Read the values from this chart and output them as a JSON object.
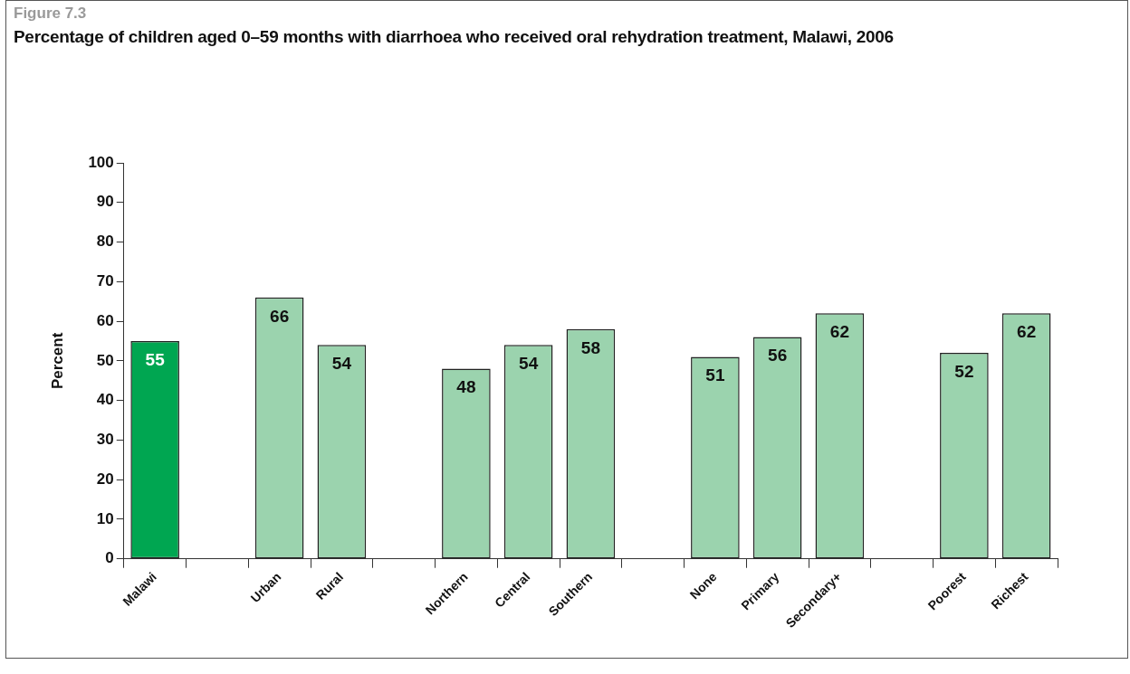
{
  "chart_data": {
    "type": "bar",
    "title": "Figure 7.3",
    "subtitle": "Percentage of children aged 0–59 months with diarrhoea who received oral rehydration treatment, Malawi, 2006",
    "ylabel": "Percent",
    "categories": [
      "Malawi",
      null,
      "Urban",
      "Rural",
      null,
      "Northern",
      "Central",
      "Southern",
      null,
      "None",
      "Primary",
      "Secondary+",
      null,
      "Poorest",
      "Richest"
    ],
    "values": [
      55,
      null,
      66,
      54,
      null,
      48,
      54,
      58,
      null,
      51,
      56,
      62,
      null,
      52,
      62
    ],
    "colors": [
      "#00a651",
      null,
      "#9bd3ae",
      "#9bd3ae",
      null,
      "#9bd3ae",
      "#9bd3ae",
      "#9bd3ae",
      null,
      "#9bd3ae",
      "#9bd3ae",
      "#9bd3ae",
      null,
      "#9bd3ae",
      "#9bd3ae"
    ],
    "ylim": [
      0,
      100
    ],
    "yticks": [
      0,
      10,
      20,
      30,
      40,
      50,
      60,
      70,
      80,
      90,
      100
    ],
    "grid": false,
    "legend": false,
    "data_labels": true
  }
}
